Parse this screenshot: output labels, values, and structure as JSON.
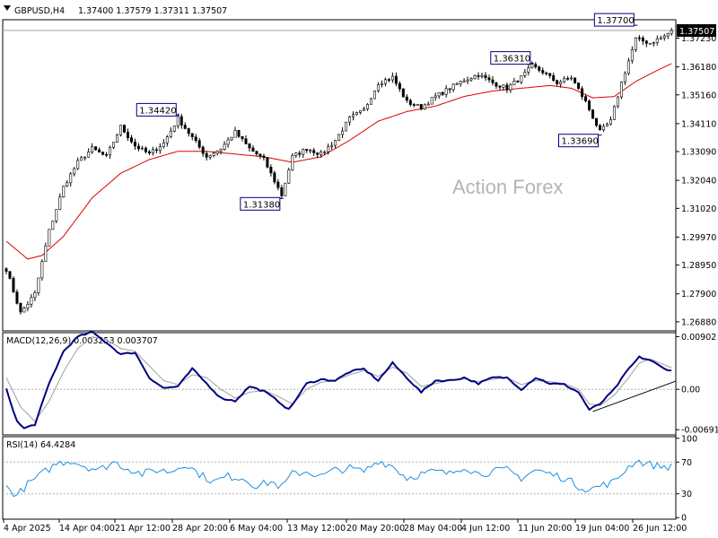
{
  "header": {
    "symbol": "GBPUSD,H4",
    "ohlc": "1.37400 1.37579 1.37311 1.37507",
    "macd_label": "MACD(12,26,9) 0.003253 0.003707",
    "rsi_label": "RSI(14) 64.4284",
    "watermark": "Action Forex"
  },
  "colors": {
    "candle": "#000000",
    "ma": "#dd0000",
    "macd_main": "#000080",
    "macd_signal": "#a0a0a0",
    "rsi": "#1e8fe0",
    "trendline": "#000000",
    "callout_border": "#000080",
    "level_line": "#a0a0a0"
  },
  "chart_data": [
    {
      "type": "line",
      "name": "price",
      "title": "GBPUSD,H4",
      "ylim": [
        1.2655,
        1.379
      ],
      "y_ticks": [
        "1.26880",
        "1.27900",
        "1.28950",
        "1.29970",
        "1.31020",
        "1.32040",
        "1.33090",
        "1.34110",
        "1.35160",
        "1.36180",
        "1.37230"
      ],
      "y_tick_values": [
        1.2688,
        1.279,
        1.2895,
        1.2997,
        1.3102,
        1.3204,
        1.3309,
        1.3411,
        1.3516,
        1.3618,
        1.3723
      ],
      "x_ticks": [
        "4 Apr 2025",
        "14 Apr 04:00",
        "21 Apr 12:00",
        "28 Apr 20:00",
        "6 May 04:00",
        "13 May 12:00",
        "20 May 20:00",
        "28 May 04:00",
        "4 Jun 12:00",
        "11 Jun 20:00",
        "19 Jun 04:00",
        "26 Jun 12:00"
      ],
      "current_price": "1.37507",
      "current_price_value": 1.37507,
      "swing_labels": [
        {
          "text": "1.34420",
          "value": 1.3442,
          "bar": 48
        },
        {
          "text": "1.31380",
          "value": 1.3138,
          "bar": 77
        },
        {
          "text": "1.36310",
          "value": 1.3631,
          "bar": 147
        },
        {
          "text": "1.33690",
          "value": 1.3369,
          "bar": 166
        },
        {
          "text": "1.37700",
          "value": 1.377,
          "bar": 176
        }
      ],
      "anchors": [
        [
          0,
          1.288
        ],
        [
          4,
          1.272
        ],
        [
          8,
          1.279
        ],
        [
          12,
          1.302
        ],
        [
          16,
          1.318
        ],
        [
          20,
          1.327
        ],
        [
          24,
          1.332
        ],
        [
          28,
          1.329
        ],
        [
          32,
          1.34
        ],
        [
          36,
          1.333
        ],
        [
          40,
          1.33
        ],
        [
          44,
          1.334
        ],
        [
          48,
          1.343
        ],
        [
          52,
          1.336
        ],
        [
          56,
          1.329
        ],
        [
          60,
          1.332
        ],
        [
          64,
          1.338
        ],
        [
          68,
          1.332
        ],
        [
          72,
          1.328
        ],
        [
          77,
          1.315
        ],
        [
          80,
          1.329
        ],
        [
          84,
          1.332
        ],
        [
          88,
          1.33
        ],
        [
          92,
          1.335
        ],
        [
          96,
          1.343
        ],
        [
          100,
          1.346
        ],
        [
          104,
          1.356
        ],
        [
          108,
          1.358
        ],
        [
          112,
          1.349
        ],
        [
          116,
          1.347
        ],
        [
          120,
          1.351
        ],
        [
          124,
          1.354
        ],
        [
          128,
          1.357
        ],
        [
          132,
          1.359
        ],
        [
          136,
          1.356
        ],
        [
          140,
          1.354
        ],
        [
          144,
          1.358
        ],
        [
          147,
          1.362
        ],
        [
          150,
          1.36
        ],
        [
          154,
          1.356
        ],
        [
          158,
          1.358
        ],
        [
          162,
          1.349
        ],
        [
          166,
          1.338
        ],
        [
          169,
          1.342
        ],
        [
          172,
          1.356
        ],
        [
          174,
          1.364
        ],
        [
          176,
          1.372
        ],
        [
          180,
          1.3705
        ],
        [
          184,
          1.373
        ],
        [
          186,
          1.375
        ]
      ],
      "ma_anchors": [
        [
          0,
          1.2982
        ],
        [
          6,
          1.2917
        ],
        [
          10,
          1.293
        ],
        [
          16,
          1.3
        ],
        [
          24,
          1.314
        ],
        [
          32,
          1.323
        ],
        [
          40,
          1.328
        ],
        [
          48,
          1.331
        ],
        [
          56,
          1.331
        ],
        [
          64,
          1.33
        ],
        [
          72,
          1.329
        ],
        [
          80,
          1.327
        ],
        [
          88,
          1.329
        ],
        [
          96,
          1.335
        ],
        [
          104,
          1.342
        ],
        [
          112,
          1.3455
        ],
        [
          120,
          1.3475
        ],
        [
          128,
          1.351
        ],
        [
          136,
          1.353
        ],
        [
          144,
          1.354
        ],
        [
          152,
          1.355
        ],
        [
          158,
          1.354
        ],
        [
          164,
          1.3505
        ],
        [
          170,
          1.351
        ],
        [
          176,
          1.3565
        ],
        [
          182,
          1.3605
        ],
        [
          186,
          1.363
        ]
      ]
    },
    {
      "type": "line",
      "name": "macd",
      "title": "MACD(12,26,9) 0.003253 0.003707",
      "ylim": [
        -0.0078,
        0.0097
      ],
      "y_ticks": [
        "0.00902",
        "0.00",
        "-0.006915"
      ],
      "y_tick_values": [
        0.00902,
        0.0,
        -0.006915
      ],
      "main_anchors": [
        [
          0,
          0.0
        ],
        [
          3,
          -0.0055
        ],
        [
          5,
          -0.0067
        ],
        [
          8,
          -0.006
        ],
        [
          12,
          0.001
        ],
        [
          16,
          0.0065
        ],
        [
          20,
          0.009
        ],
        [
          24,
          0.0098
        ],
        [
          28,
          0.008
        ],
        [
          32,
          0.006
        ],
        [
          36,
          0.0063
        ],
        [
          40,
          0.002
        ],
        [
          44,
          0.0002
        ],
        [
          48,
          0.0005
        ],
        [
          52,
          0.0035
        ],
        [
          56,
          0.001
        ],
        [
          60,
          -0.0015
        ],
        [
          64,
          -0.002
        ],
        [
          68,
          0.0005
        ],
        [
          72,
          -0.0003
        ],
        [
          76,
          -0.002
        ],
        [
          79,
          -0.0035
        ],
        [
          84,
          0.001
        ],
        [
          88,
          0.0017
        ],
        [
          92,
          0.0015
        ],
        [
          96,
          0.003
        ],
        [
          100,
          0.0035
        ],
        [
          104,
          0.0015
        ],
        [
          108,
          0.0045
        ],
        [
          112,
          0.002
        ],
        [
          116,
          -0.0005
        ],
        [
          120,
          0.0015
        ],
        [
          124,
          0.0015
        ],
        [
          128,
          0.002
        ],
        [
          132,
          0.001
        ],
        [
          136,
          0.002
        ],
        [
          140,
          0.002
        ],
        [
          144,
          0.0
        ],
        [
          148,
          0.002
        ],
        [
          152,
          0.001
        ],
        [
          156,
          0.0008
        ],
        [
          160,
          -0.0005
        ],
        [
          163,
          -0.0035
        ],
        [
          166,
          -0.0025
        ],
        [
          170,
          0.0
        ],
        [
          174,
          0.0035
        ],
        [
          177,
          0.0055
        ],
        [
          180,
          0.005
        ],
        [
          184,
          0.0035
        ],
        [
          186,
          0.0033
        ]
      ],
      "signal_anchors": [
        [
          0,
          0.002
        ],
        [
          4,
          -0.003
        ],
        [
          8,
          -0.0055
        ],
        [
          12,
          -0.002
        ],
        [
          16,
          0.003
        ],
        [
          20,
          0.007
        ],
        [
          24,
          0.009
        ],
        [
          28,
          0.0085
        ],
        [
          32,
          0.007
        ],
        [
          36,
          0.0065
        ],
        [
          40,
          0.004
        ],
        [
          44,
          0.0015
        ],
        [
          48,
          0.0008
        ],
        [
          52,
          0.0025
        ],
        [
          56,
          0.002
        ],
        [
          60,
          0.0
        ],
        [
          64,
          -0.0015
        ],
        [
          68,
          -0.0005
        ],
        [
          72,
          -0.0002
        ],
        [
          76,
          -0.0012
        ],
        [
          80,
          -0.0025
        ],
        [
          84,
          0.0
        ],
        [
          88,
          0.0012
        ],
        [
          92,
          0.0015
        ],
        [
          96,
          0.0025
        ],
        [
          100,
          0.0032
        ],
        [
          104,
          0.0022
        ],
        [
          108,
          0.0038
        ],
        [
          112,
          0.0028
        ],
        [
          116,
          0.0005
        ],
        [
          120,
          0.001
        ],
        [
          124,
          0.0015
        ],
        [
          128,
          0.0018
        ],
        [
          132,
          0.0013
        ],
        [
          136,
          0.0017
        ],
        [
          140,
          0.002
        ],
        [
          144,
          0.0008
        ],
        [
          148,
          0.0015
        ],
        [
          152,
          0.0013
        ],
        [
          156,
          0.001
        ],
        [
          160,
          0.0
        ],
        [
          163,
          -0.0025
        ],
        [
          166,
          -0.0028
        ],
        [
          170,
          -0.001
        ],
        [
          174,
          0.002
        ],
        [
          177,
          0.0045
        ],
        [
          180,
          0.0052
        ],
        [
          184,
          0.0042
        ],
        [
          186,
          0.0037
        ]
      ],
      "trendline": [
        [
          164,
          -0.0038
        ],
        [
          194,
          0.0014
        ]
      ]
    },
    {
      "type": "line",
      "name": "rsi",
      "title": "RSI(14) 64.4284",
      "ylim": [
        -2,
        102
      ],
      "y_ticks": [
        "100",
        "70",
        "30",
        "0"
      ],
      "y_tick_values": [
        100,
        70,
        30,
        0
      ],
      "levels": [
        70,
        30
      ],
      "anchors": [
        [
          0,
          38
        ],
        [
          3,
          28
        ],
        [
          6,
          42
        ],
        [
          10,
          55
        ],
        [
          14,
          68
        ],
        [
          18,
          72
        ],
        [
          22,
          65
        ],
        [
          26,
          60
        ],
        [
          30,
          70
        ],
        [
          34,
          62
        ],
        [
          38,
          55
        ],
        [
          42,
          60
        ],
        [
          46,
          58
        ],
        [
          50,
          68
        ],
        [
          54,
          55
        ],
        [
          58,
          45
        ],
        [
          62,
          52
        ],
        [
          66,
          50
        ],
        [
          70,
          40
        ],
        [
          74,
          45
        ],
        [
          77,
          38
        ],
        [
          80,
          55
        ],
        [
          84,
          58
        ],
        [
          88,
          52
        ],
        [
          92,
          60
        ],
        [
          96,
          62
        ],
        [
          100,
          58
        ],
        [
          104,
          72
        ],
        [
          108,
          65
        ],
        [
          112,
          50
        ],
        [
          116,
          55
        ],
        [
          120,
          58
        ],
        [
          124,
          55
        ],
        [
          128,
          65
        ],
        [
          132,
          55
        ],
        [
          136,
          58
        ],
        [
          140,
          60
        ],
        [
          144,
          50
        ],
        [
          148,
          60
        ],
        [
          152,
          55
        ],
        [
          156,
          50
        ],
        [
          160,
          40
        ],
        [
          163,
          35
        ],
        [
          166,
          40
        ],
        [
          170,
          45
        ],
        [
          173,
          60
        ],
        [
          176,
          72
        ],
        [
          179,
          68
        ],
        [
          182,
          65
        ],
        [
          186,
          64
        ]
      ]
    }
  ]
}
